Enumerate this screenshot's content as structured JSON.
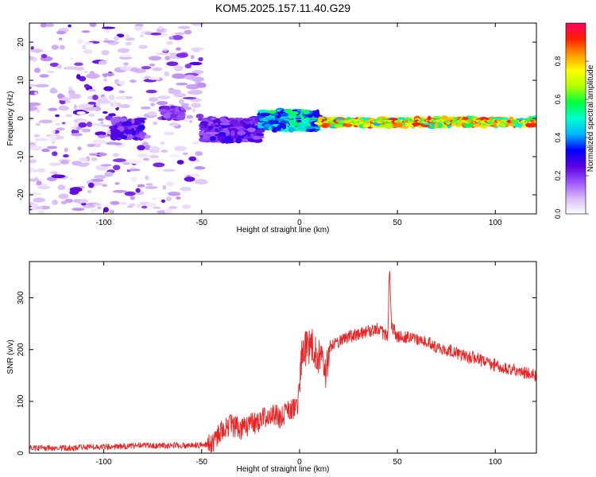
{
  "title": "KOM5.2025.157.11.40.G29",
  "chart_data": [
    {
      "type": "heatmap",
      "xlabel": "Height of straight line (km)",
      "ylabel": "Frequency (Hz)",
      "xlim": [
        -138,
        121
      ],
      "ylim": [
        -25,
        25
      ],
      "xticks": [
        -100,
        -50,
        0,
        50,
        100
      ],
      "yticks": [
        -20,
        -10,
        0,
        10,
        20
      ],
      "colorbar": {
        "label": "Normalized spectral amplitude",
        "range": [
          0,
          1
        ],
        "ticks": [
          0.0,
          0.2,
          0.4,
          0.6,
          0.8
        ],
        "colormap": [
          "#ffffff",
          "#d6b8f5",
          "#9c52ff",
          "#5a00e0",
          "#0000ff",
          "#00b4ff",
          "#00ffd0",
          "#00ff40",
          "#b0ff00",
          "#ffff00",
          "#ff9900",
          "#ff2000",
          "#ff0060"
        ]
      },
      "features": [
        {
          "x": [
            -138,
            -50
          ],
          "freq": [
            -25,
            25
          ],
          "amplitude": [
            0.02,
            0.12
          ],
          "note": "scattered noise"
        },
        {
          "x": [
            -95,
            -80
          ],
          "freq": [
            -5,
            0
          ],
          "amplitude": [
            0.15,
            0.3
          ]
        },
        {
          "x": [
            -70,
            -60
          ],
          "freq": [
            0,
            3
          ],
          "amplitude": [
            0.15,
            0.25
          ]
        },
        {
          "x": [
            -50,
            -20
          ],
          "freq": [
            -6,
            0
          ],
          "amplitude": [
            0.15,
            0.3
          ]
        },
        {
          "x": [
            -20,
            10
          ],
          "freq": [
            -3,
            2
          ],
          "amplitude": [
            0.25,
            0.6
          ]
        },
        {
          "x": [
            10,
            121
          ],
          "freq": [
            -2,
            0
          ],
          "amplitude": [
            0.4,
            0.95
          ],
          "note": "strong narrow band near 0 Hz"
        }
      ]
    },
    {
      "type": "line",
      "xlabel": "Height of straight line (km)",
      "ylabel": "SNR (v/v)",
      "xlim": [
        -138,
        121
      ],
      "ylim": [
        0,
        370
      ],
      "xticks": [
        -100,
        -50,
        0,
        50,
        100
      ],
      "yticks": [
        0,
        100,
        200,
        300
      ],
      "color": "#ee2222",
      "x": [
        -138,
        -120,
        -100,
        -80,
        -60,
        -50,
        -45,
        -40,
        -35,
        -30,
        -25,
        -20,
        -15,
        -10,
        -5,
        -1,
        1,
        3,
        5,
        7,
        9,
        11,
        13,
        15,
        20,
        25,
        30,
        35,
        40,
        45,
        46,
        47,
        48,
        50,
        55,
        60,
        65,
        70,
        75,
        80,
        85,
        90,
        95,
        100,
        105,
        110,
        115,
        121
      ],
      "values": [
        10,
        10,
        12,
        15,
        15,
        15,
        20,
        45,
        55,
        45,
        55,
        65,
        75,
        70,
        80,
        90,
        180,
        200,
        205,
        215,
        170,
        190,
        150,
        205,
        215,
        225,
        230,
        235,
        240,
        225,
        360,
        240,
        240,
        225,
        225,
        220,
        215,
        205,
        200,
        195,
        185,
        185,
        175,
        170,
        165,
        160,
        155,
        150
      ]
    }
  ]
}
